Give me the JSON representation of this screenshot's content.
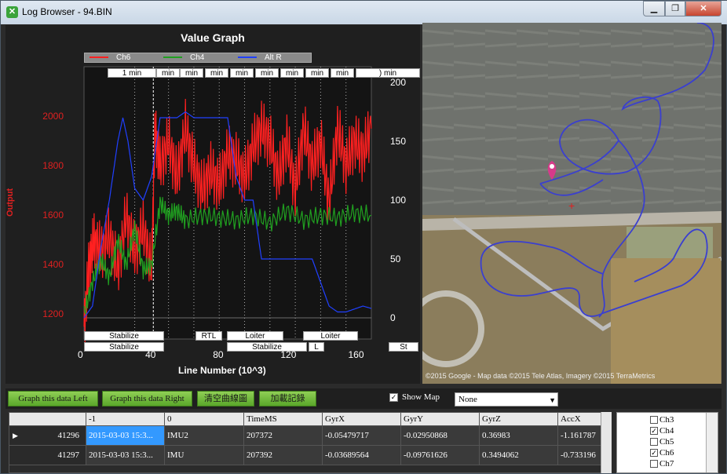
{
  "window": {
    "title": "Log Browser - 94.BIN",
    "min": "▁",
    "max": "❐",
    "close": "✕"
  },
  "chart_data": {
    "type": "line",
    "title": "Value Graph",
    "xlabel": "Line Number (10^3)",
    "ylabel": "Output",
    "xlim": [
      0,
      170
    ],
    "ylim_left": [
      1100,
      2200
    ],
    "ylim_right": [
      0,
      200
    ],
    "x_ticks": [
      0,
      40,
      80,
      120,
      160
    ],
    "y_ticks_left": [
      1200,
      1400,
      1600,
      1800,
      2000
    ],
    "y_ticks_right": [
      0,
      50,
      100,
      150,
      200
    ],
    "series": [
      {
        "name": "Ch6",
        "color": "#ff2020",
        "axis": "left",
        "x": [
          0,
          3,
          6,
          10,
          15,
          20,
          25,
          30,
          35,
          40,
          42,
          45,
          50,
          55,
          60,
          65,
          70,
          75,
          80,
          85,
          90,
          95,
          100,
          105,
          110,
          115,
          120,
          125,
          130,
          135,
          140,
          145,
          150,
          155,
          160,
          165,
          170
        ],
        "values": [
          1150,
          1400,
          1500,
          1450,
          1520,
          1380,
          1600,
          1450,
          1550,
          1380,
          1950,
          1800,
          1900,
          1750,
          1950,
          1800,
          1700,
          1780,
          1720,
          1850,
          1820,
          1750,
          1880,
          1950,
          1900,
          1750,
          1900,
          1700,
          1950,
          1800,
          1900,
          1650,
          1950,
          1800,
          1900,
          1850,
          1950
        ]
      },
      {
        "name": "Ch4",
        "color": "#20a020",
        "axis": "left",
        "x": [
          0,
          5,
          10,
          15,
          20,
          25,
          30,
          35,
          40,
          45,
          50,
          55,
          60,
          70,
          80,
          90,
          100,
          110,
          120,
          130,
          140,
          150,
          160,
          170
        ],
        "values": [
          1200,
          1330,
          1420,
          1350,
          1500,
          1400,
          1550,
          1380,
          1400,
          1650,
          1600,
          1620,
          1580,
          1600,
          1590,
          1580,
          1600,
          1570,
          1620,
          1580,
          1600,
          1590,
          1610,
          1600
        ]
      },
      {
        "name": "Alt R",
        "color": "#2040ff",
        "axis": "right",
        "x": [
          0,
          5,
          10,
          15,
          20,
          23,
          26,
          30,
          35,
          40,
          45,
          55,
          60,
          65,
          70,
          85,
          90,
          95,
          100,
          105,
          120,
          130,
          135,
          140,
          145,
          150,
          155,
          165,
          170
        ],
        "values": [
          0,
          10,
          60,
          100,
          150,
          170,
          150,
          110,
          100,
          120,
          170,
          170,
          175,
          170,
          170,
          170,
          120,
          100,
          100,
          50,
          50,
          50,
          50,
          30,
          10,
          5,
          5,
          10,
          8
        ]
      }
    ],
    "time_labels": [
      "1 min",
      "min",
      "min",
      "min",
      "min",
      "min",
      "min",
      "min",
      "min",
      ") min"
    ],
    "mode_labels_top": [
      "Stabilize",
      "RTL",
      "Loiter",
      "Loiter"
    ],
    "mode_labels_bottom": [
      "Stabilize",
      "Stabilize",
      "L",
      "St"
    ]
  },
  "map": {
    "credit": "©2015 Google - Map data ©2015 Tele Atlas, Imagery ©2015 TerraMetrics"
  },
  "toolbar": {
    "graph_left": "Graph this data Left",
    "graph_right": "Graph this data Right",
    "clear_graph": "清空曲線圖",
    "load_log": "加載記錄",
    "show_map": "Show Map",
    "show_map_checked": "✓",
    "select_value": "None",
    "select_arrow": "▼"
  },
  "table": {
    "headers": [
      "",
      "-1",
      "0",
      "TimeMS",
      "GyrX",
      "GyrY",
      "GyrZ",
      "AccX"
    ],
    "rows": [
      {
        "marker": "▶",
        "line": "41296",
        "col_m1": "2015-03-03 15:3...",
        "type": "IMU2",
        "time": "207372",
        "gyrx": "-0.05479717",
        "gyry": "-0.02950868",
        "gyrz": "0.36983",
        "accx": "-1.161787"
      },
      {
        "marker": "",
        "line": "41297",
        "col_m1": "2015-03-03 15:3...",
        "type": "IMU",
        "time": "207392",
        "gyrx": "-0.03689564",
        "gyry": "-0.09761626",
        "gyrz": "0.3494062",
        "accx": "-0.733196"
      }
    ]
  },
  "channels": [
    {
      "name": "Ch3",
      "checked": ""
    },
    {
      "name": "Ch4",
      "checked": "✓"
    },
    {
      "name": "Ch5",
      "checked": ""
    },
    {
      "name": "Ch6",
      "checked": "✓"
    },
    {
      "name": "Ch7",
      "checked": ""
    }
  ]
}
